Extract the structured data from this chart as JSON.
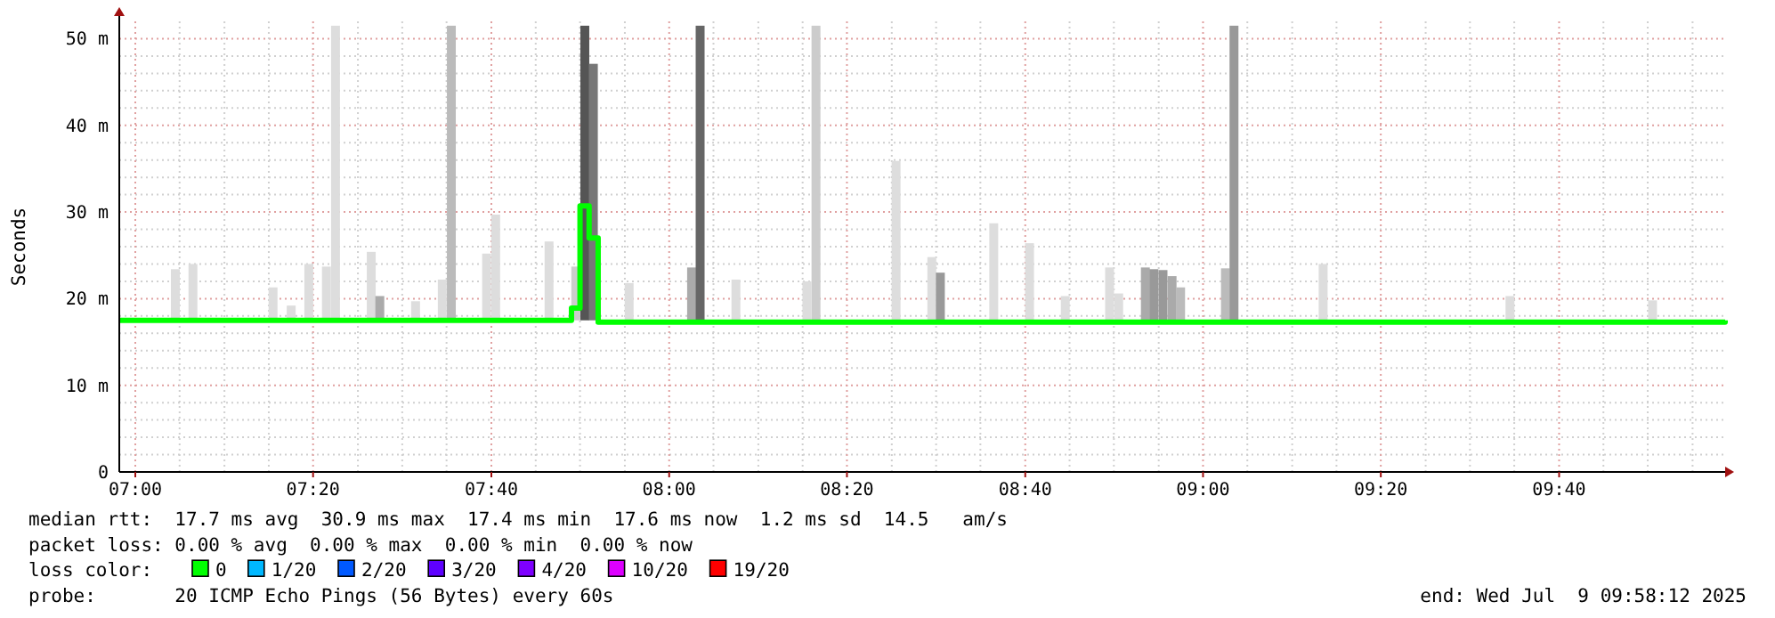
{
  "chart_data": {
    "type": "step",
    "ylabel": "Seconds",
    "xlim": [
      6.97,
      9.978
    ],
    "ylim": [
      0,
      52
    ],
    "xticks": [
      {
        "value": 7,
        "label": "07:00"
      },
      {
        "value": 7.083,
        "label": null
      },
      {
        "value": 7.167,
        "label": null
      },
      {
        "value": 7.25,
        "label": null
      },
      {
        "value": 7.333,
        "label": "07:20"
      },
      {
        "value": 7.417,
        "label": null
      },
      {
        "value": 7.5,
        "label": null
      },
      {
        "value": 7.583,
        "label": null
      },
      {
        "value": 7.667,
        "label": "07:40"
      },
      {
        "value": 7.75,
        "label": null
      },
      {
        "value": 7.833,
        "label": null
      },
      {
        "value": 7.917,
        "label": null
      },
      {
        "value": 8,
        "label": "08:00"
      },
      {
        "value": 8.083,
        "label": null
      },
      {
        "value": 8.167,
        "label": null
      },
      {
        "value": 8.25,
        "label": null
      },
      {
        "value": 8.333,
        "label": "08:20"
      },
      {
        "value": 8.417,
        "label": null
      },
      {
        "value": 8.5,
        "label": null
      },
      {
        "value": 8.583,
        "label": null
      },
      {
        "value": 8.667,
        "label": "08:40"
      },
      {
        "value": 8.75,
        "label": null
      },
      {
        "value": 8.833,
        "label": null
      },
      {
        "value": 8.917,
        "label": null
      },
      {
        "value": 9,
        "label": "09:00"
      },
      {
        "value": 9.083,
        "label": null
      },
      {
        "value": 9.167,
        "label": null
      },
      {
        "value": 9.25,
        "label": null
      },
      {
        "value": 9.333,
        "label": "09:20"
      },
      {
        "value": 9.417,
        "label": null
      },
      {
        "value": 9.5,
        "label": null
      },
      {
        "value": 9.583,
        "label": null
      },
      {
        "value": 9.667,
        "label": "09:40"
      },
      {
        "value": 9.75,
        "label": null
      },
      {
        "value": 9.833,
        "label": null
      },
      {
        "value": 9.917,
        "label": null
      }
    ],
    "yticks": [
      0,
      {
        "value": 2,
        "label": null
      },
      {
        "value": 4,
        "label": null
      },
      {
        "value": 6,
        "label": null
      },
      {
        "value": 8,
        "label": null
      },
      {
        "value": 10,
        "label": "10 m"
      },
      {
        "value": 12,
        "label": null
      },
      {
        "value": 14,
        "label": null
      },
      {
        "value": 16,
        "label": null
      },
      {
        "value": 18,
        "label": null
      },
      {
        "value": 20,
        "label": "20 m"
      },
      {
        "value": 22,
        "label": null
      },
      {
        "value": 24,
        "label": null
      },
      {
        "value": 26,
        "label": null
      },
      {
        "value": 28,
        "label": null
      },
      {
        "value": 30,
        "label": "30 m"
      },
      {
        "value": 32,
        "label": null
      },
      {
        "value": 34,
        "label": null
      },
      {
        "value": 36,
        "label": null
      },
      {
        "value": 38,
        "label": null
      },
      {
        "value": 40,
        "label": "40 m"
      },
      {
        "value": 42,
        "label": null
      },
      {
        "value": 44,
        "label": null
      },
      {
        "value": 46,
        "label": null
      },
      {
        "value": 48,
        "label": null
      },
      {
        "value": 50,
        "label": "50 m"
      }
    ],
    "grid": true,
    "legend": "bottom",
    "legend_title": "loss color:",
    "series": [
      {
        "type": "bar",
        "x": [
          7.075,
          7.108,
          7.258,
          7.292,
          7.325,
          7.358,
          7.375,
          7.442,
          7.458,
          7.525,
          7.575,
          7.592,
          7.658,
          7.675,
          7.775,
          7.825,
          7.842,
          7.858,
          7.925,
          8.042,
          8.058,
          8.125,
          8.258,
          8.275,
          8.425,
          8.492,
          8.508,
          8.608,
          8.675,
          8.742,
          8.825,
          8.842,
          8.892,
          8.908,
          8.925,
          8.942,
          8.958,
          9.042,
          9.058,
          9.225,
          9.575,
          9.842
        ],
        "base": [
          17.5,
          17.5,
          17.5,
          17.5,
          17.5,
          17.5,
          17.5,
          17.5,
          17.5,
          17.5,
          17.5,
          17.5,
          17.5,
          17.5,
          17.5,
          17.5,
          17.5,
          17.5,
          17.5,
          17.5,
          17.5,
          17.5,
          17.5,
          17.5,
          17.5,
          17.5,
          17.5,
          17.5,
          17.5,
          17.5,
          17.5,
          17.5,
          17.5,
          17.5,
          17.5,
          17.5,
          17.5,
          17.5,
          17.5,
          17.5,
          17.5,
          17.5
        ],
        "values": [
          5.9,
          6.5,
          3.8,
          1.7,
          6.5,
          6.2,
          34,
          7.9,
          2.8,
          2.2,
          4.7,
          34,
          7.7,
          12.2,
          9.1,
          6.2,
          34,
          29.6,
          4.3,
          6.1,
          34,
          4.7,
          4.5,
          34,
          18.4,
          7.3,
          5.5,
          11.2,
          8.9,
          2.8,
          6.1,
          3.1,
          6.1,
          5.9,
          5.8,
          5.1,
          3.8,
          6.0,
          34,
          6.5,
          2.8,
          2.3
        ],
        "colors": [
          "#dddddd",
          "#dddddd",
          "#dddddd",
          "#dddddd",
          "#dddddd",
          "#dddddd",
          "#dddddd",
          "#dddddd",
          "#aaaaaa",
          "#dddddd",
          "#dddddd",
          "#bbbbbb",
          "#dddddd",
          "#dddddd",
          "#dddddd",
          "#cccccc",
          "#555555",
          "#777777",
          "#dddddd",
          "#aaaaaa",
          "#666666",
          "#dddddd",
          "#dddddd",
          "#cccccc",
          "#dddddd",
          "#dddddd",
          "#999999",
          "#dddddd",
          "#dddddd",
          "#dddddd",
          "#dddddd",
          "#dddddd",
          "#aaaaaa",
          "#999999",
          "#999999",
          "#aaaaaa",
          "#bbbbbb",
          "#bbbbbb",
          "#999999",
          "#dddddd",
          "#dddddd",
          "#dddddd"
        ]
      },
      {
        "name": "0",
        "color": "#00ff00",
        "x": [
          6.97,
          7.817,
          7.833,
          7.85,
          7.867,
          9.978
        ],
        "values": [
          17.5,
          18.9,
          30.7,
          27.0,
          17.3,
          17.5
        ]
      },
      {
        "type": "step",
        "name": "1/20",
        "color": "#00b8ff"
      },
      {
        "type": "step",
        "name": "2/20",
        "color": "#0059ff"
      },
      {
        "type": "step",
        "name": "3/20",
        "color": "#5e00ff"
      },
      {
        "type": "step",
        "name": "4/20",
        "color": "#7e00ff"
      },
      {
        "type": "step",
        "name": "10/20",
        "color": "#dd00ff"
      },
      {
        "type": "step",
        "name": "19/20",
        "color": "#ff0000"
      }
    ],
    "annotations": [
      "median rtt:  17.7 ms avg  30.9 ms max  17.4 ms min  17.6 ms now  1.2 ms sd  14.5   am/s",
      "packet loss: 0.00 % avg  0.00 % max  0.00 % min  0.00 % now",
      "probe:       20 ICMP Echo Pings (56 Bytes) every 60s",
      "end: Wed Jul  9 09:58:12 2025"
    ]
  }
}
